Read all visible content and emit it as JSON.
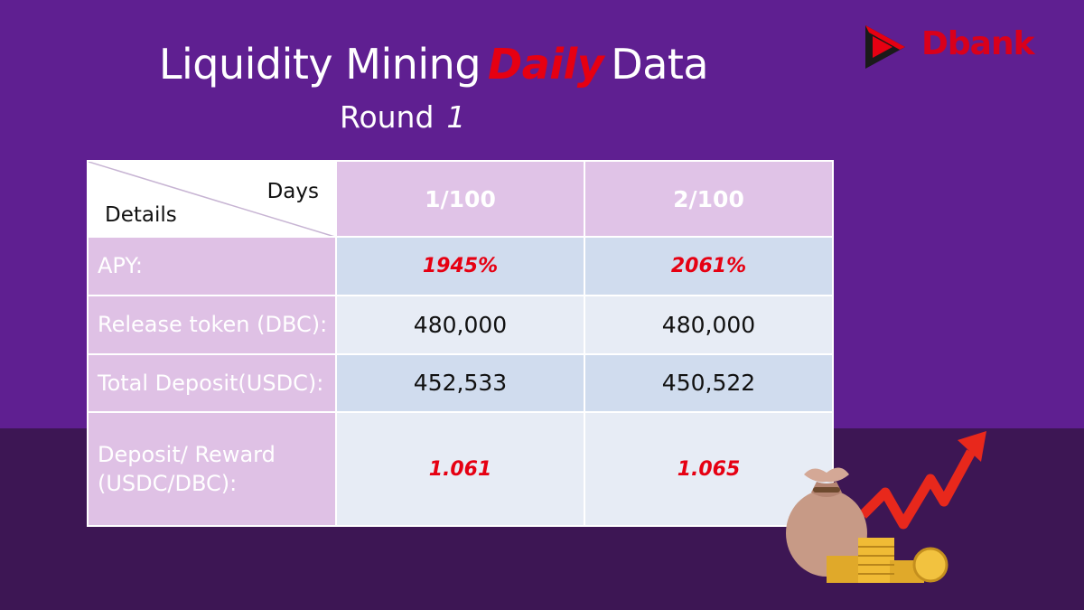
{
  "title": {
    "part1": "Liquidity Mining",
    "highlight": "Daily",
    "part2": "Data"
  },
  "round": {
    "label": "Round",
    "number": "1"
  },
  "logo": {
    "text": "Dbank"
  },
  "table": {
    "corner_top": "Days",
    "corner_bottom": "Details",
    "columns": [
      "1/100",
      "2/100"
    ],
    "rows": [
      {
        "label": "APY:",
        "values": [
          "1945%",
          "2061%"
        ],
        "highlight": true
      },
      {
        "label": "Release token (DBC):",
        "values": [
          "480,000",
          "480,000"
        ],
        "highlight": false
      },
      {
        "label": "Total Deposit(USDC):",
        "values": [
          "452,533",
          "450,522"
        ],
        "highlight": false
      },
      {
        "label_line1": "Deposit/ Reward",
        "label_line2": "(USDC/DBC):",
        "values": [
          "1.061",
          "1.065"
        ],
        "highlight": true
      }
    ]
  },
  "colors": {
    "background": "#5f1f91",
    "bottom_band": "#3d1654",
    "accent_red": "#e60012",
    "header_cell": "#e0c3e7",
    "value_cell_dark": "#d0dcee",
    "value_cell_light": "#e7ecf5"
  },
  "icons": [
    "dbank-logo-icon",
    "money-bag-icon",
    "coin-stack-icon",
    "trend-arrow-icon"
  ]
}
